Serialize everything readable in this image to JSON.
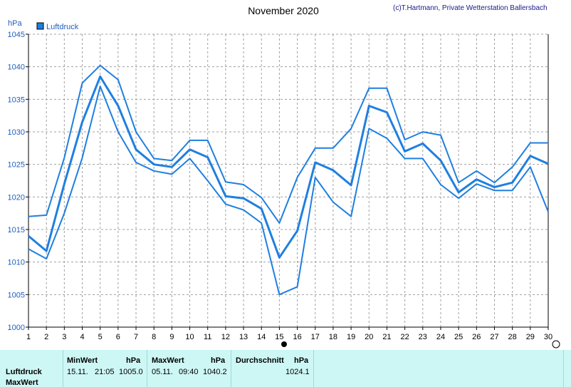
{
  "header": {
    "title": "November 2020",
    "copyright": "(c)T.Hartmann, Private Wetterstation Ballersbach"
  },
  "chart_data": {
    "type": "line",
    "y_unit": "hPa",
    "ylim": [
      1000,
      1045
    ],
    "y_ticks": [
      1000,
      1005,
      1010,
      1015,
      1020,
      1025,
      1030,
      1035,
      1040,
      1045
    ],
    "x": [
      1,
      2,
      3,
      4,
      5,
      6,
      7,
      8,
      9,
      10,
      11,
      12,
      13,
      14,
      15,
      16,
      17,
      18,
      19,
      20,
      21,
      22,
      23,
      24,
      25,
      26,
      27,
      28,
      29,
      30
    ],
    "legend": [
      "Luftdruck"
    ],
    "legend_placement": "top-left",
    "grid": true,
    "series": [
      {
        "name": "Luftdruck",
        "values": [
          1014.0,
          1011.7,
          1022.0,
          1031.5,
          1038.5,
          1034.0,
          1027.3,
          1025.0,
          1024.6,
          1027.3,
          1026.1,
          1020.1,
          1019.8,
          1018.2,
          1010.7,
          1014.8,
          1025.3,
          1024.1,
          1021.8,
          1034.0,
          1033.0,
          1027.0,
          1028.2,
          1025.6,
          1020.7,
          1022.7,
          1021.5,
          1022.2,
          1026.3,
          1025.1
        ],
        "color": "#1f7fe0"
      },
      {
        "values": [
          1017.0,
          1017.2,
          1026.0,
          1037.5,
          1040.2,
          1038.0,
          1030.0,
          1025.9,
          1025.6,
          1028.7,
          1028.7,
          1022.3,
          1021.9,
          1019.9,
          1016.0,
          1023.0,
          1027.5,
          1027.5,
          1030.5,
          1036.7,
          1036.7,
          1028.8,
          1030.0,
          1029.5,
          1022.2,
          1024.0,
          1022.2,
          1024.6,
          1028.3,
          1028.3
        ],
        "color": "#1f7fe0"
      },
      {
        "values": [
          1012.0,
          1010.5,
          1017.5,
          1026.0,
          1037.0,
          1030.0,
          1025.3,
          1024.0,
          1023.5,
          1025.9,
          1022.5,
          1018.9,
          1018.0,
          1016.0,
          1005.0,
          1006.2,
          1023.0,
          1019.2,
          1017.0,
          1030.5,
          1029.0,
          1025.9,
          1025.9,
          1021.9,
          1019.8,
          1022.0,
          1021.0,
          1021.0,
          1024.6,
          1017.7
        ],
        "color": "#1f7fe0"
      }
    ]
  },
  "stats": {
    "row_labels": [
      "Luftdruck",
      "MaxWert"
    ],
    "min": {
      "header": "MinWert",
      "unit": "hPa",
      "date": "15.11.",
      "time": "21:05",
      "value": "1005.0"
    },
    "max": {
      "header": "MaxWert",
      "unit": "hPa",
      "date": "05.11.",
      "time": "09:40",
      "value": "1040.2"
    },
    "avg": {
      "header": "Durchschnitt",
      "unit": "hPa",
      "value": "1024.1"
    }
  }
}
